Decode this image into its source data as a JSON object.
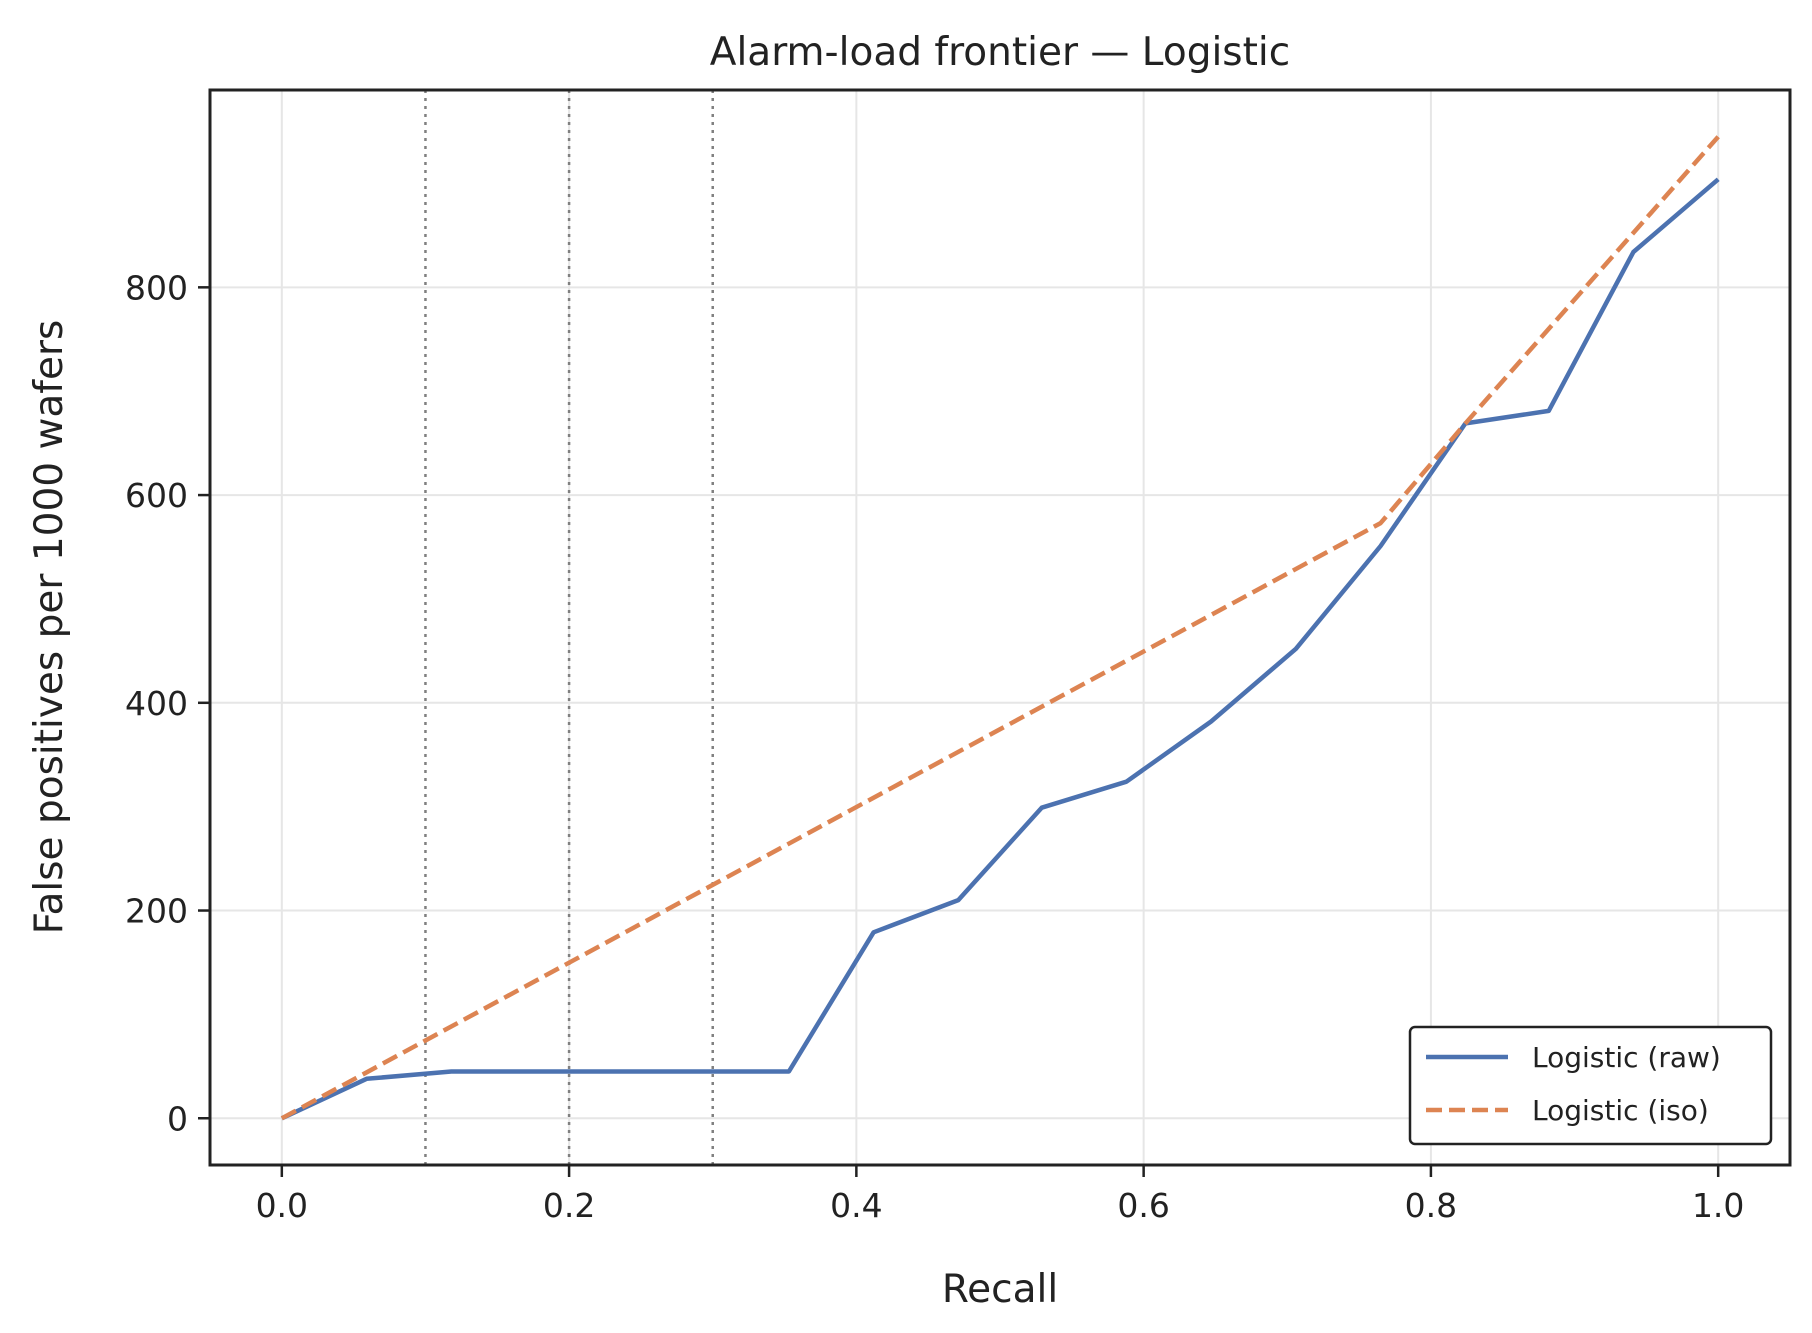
{
  "chart_data": {
    "type": "line",
    "title": "Alarm-load frontier — Logistic",
    "xlabel": "Recall",
    "ylabel": "False positives per 1000 wafers",
    "xlim": [
      -0.05,
      1.05
    ],
    "ylim": [
      -45,
      990
    ],
    "xticks": [
      0.0,
      0.2,
      0.4,
      0.6,
      0.8,
      1.0
    ],
    "xtick_labels": [
      "0.0",
      "0.2",
      "0.4",
      "0.6",
      "0.8",
      "1.0"
    ],
    "yticks": [
      0,
      200,
      400,
      600,
      800
    ],
    "ytick_labels": [
      "0",
      "200",
      "400",
      "600",
      "800"
    ],
    "grid": true,
    "legend_position": "lower-right",
    "reference_lines": {
      "orientation": "vertical",
      "style": "dotted",
      "color": "#808080",
      "x": [
        0.1,
        0.2,
        0.3
      ]
    },
    "series": [
      {
        "name": "Logistic (raw)",
        "color": "#4C72B0",
        "style": "solid",
        "x": [
          0.0,
          0.059,
          0.118,
          0.176,
          0.235,
          0.294,
          0.353,
          0.412,
          0.471,
          0.529,
          0.588,
          0.647,
          0.706,
          0.765,
          0.824,
          0.882,
          0.941,
          1.0
        ],
        "y": [
          0,
          38,
          45,
          45,
          45,
          45,
          45,
          179,
          210,
          299,
          324,
          382,
          452,
          551,
          669,
          681,
          834,
          904
        ]
      },
      {
        "name": "Logistic (iso)",
        "color": "#DD8452",
        "style": "dashed",
        "x": [
          0.0,
          0.765,
          0.824,
          1.0
        ],
        "y": [
          0,
          573,
          669,
          945
        ]
      }
    ]
  }
}
